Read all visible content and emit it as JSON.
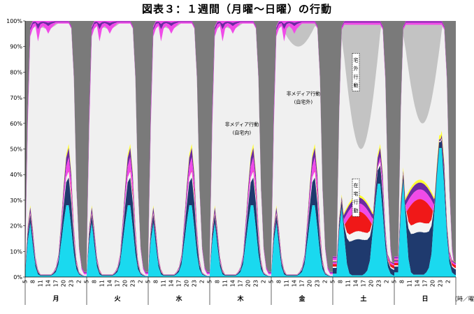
{
  "chart_data": {
    "type": "area",
    "stacked": true,
    "title": "図表３：１週間（月曜～日曜）の行動",
    "ylim": [
      0,
      100
    ],
    "yticks": [
      "0%",
      "10%",
      "20%",
      "30%",
      "40%",
      "50%",
      "60%",
      "70%",
      "80%",
      "90%",
      "100%"
    ],
    "hour_ticks": [
      "5",
      "8",
      "11",
      "14",
      "17",
      "20",
      "23",
      "2"
    ],
    "days": [
      "月",
      "火",
      "水",
      "木",
      "金",
      "土",
      "日"
    ],
    "x_unit_label": "（時／曜日）",
    "annotations": [
      {
        "text": "非メディア行動",
        "sub": "(自宅外)",
        "day": 4,
        "hour": 17.5,
        "y": 71
      },
      {
        "text": "非メディア行動",
        "sub": "(自宅内)",
        "day": 3,
        "hour": 17.5,
        "y": 59
      },
      {
        "text": "宅外行動",
        "vertical": true,
        "day": 5,
        "hour": 14,
        "y": 80
      },
      {
        "text": "在宅行動",
        "vertical": true,
        "day": 5,
        "hour": 14,
        "y": 31
      }
    ],
    "series_colors": {
      "tv": "#1ad9ef",
      "media_navy": "#1f3a6e",
      "media_white": "#f4f4f4",
      "media_red": "#f01818",
      "media_magenta": "#f04be8",
      "media_purple": "#6a2aa0",
      "media_yellow": "#ffff33",
      "home_non_media": "#f0f0f0",
      "outside_mid": "#c3c3c3",
      "sleep_dark": "#7a7a7a"
    },
    "approx_weekday_profile": {
      "hours": [
        5,
        6,
        7,
        8,
        9,
        10,
        11,
        12,
        13,
        14,
        15,
        16,
        17,
        18,
        19,
        20,
        21,
        22,
        23,
        24,
        25,
        26,
        27,
        28
      ],
      "tv": [
        1,
        14,
        21,
        12,
        4,
        1,
        0.5,
        0.5,
        0.5,
        0.5,
        0.5,
        1,
        2,
        5,
        13,
        21,
        28,
        28,
        19,
        9,
        3,
        1,
        0.5,
        0.3
      ],
      "media_total": [
        2,
        20,
        28,
        19,
        8,
        3,
        1,
        1,
        1,
        1,
        1,
        2,
        4,
        9,
        22,
        36,
        48,
        52,
        41,
        20,
        7,
        2,
        1,
        0.5
      ],
      "sleep": [
        92,
        35,
        2,
        0,
        0,
        0,
        0,
        0,
        0,
        0,
        0,
        0,
        0,
        0,
        0,
        0,
        0,
        0,
        2,
        22,
        65,
        88,
        96,
        98
      ],
      "top_media_band_pct": [
        2,
        6,
        4,
        3,
        2,
        8,
        3,
        2,
        3,
        5,
        3,
        2,
        1,
        1,
        1,
        1,
        1,
        1,
        1,
        1,
        1,
        1,
        1,
        1
      ]
    }
  }
}
